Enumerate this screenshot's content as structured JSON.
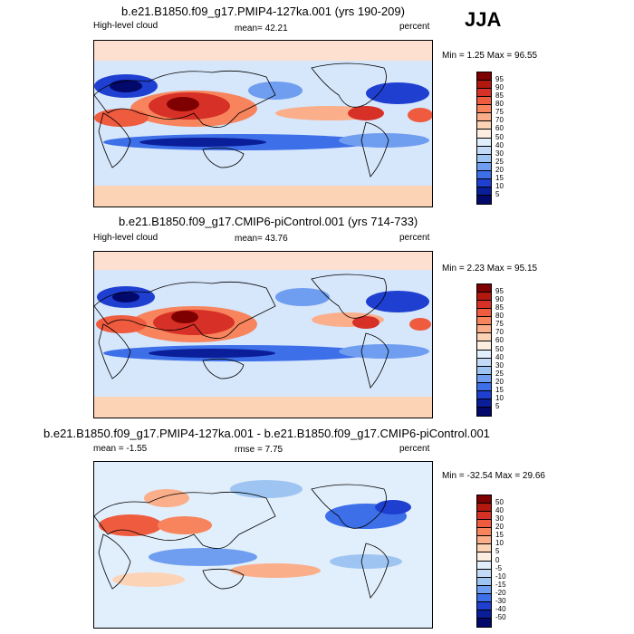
{
  "season": "JJA",
  "panels": [
    {
      "title": "b.e21.B1850.f09_g17.PMIP4-127ka.001 (yrs 190-209)",
      "left_label": "High-level cloud",
      "mean_text": "mean=  42.21",
      "units": "percent",
      "minmax": "Min =   1.25 Max =  96.55",
      "colorbar": {
        "labels": [
          "95",
          "90",
          "85",
          "80",
          "75",
          "70",
          "60",
          "50",
          "40",
          "30",
          "25",
          "20",
          "15",
          "10",
          "5"
        ],
        "colors": [
          "#7f0000",
          "#b2180e",
          "#d73027",
          "#ef5b3f",
          "#f7845c",
          "#fbae8a",
          "#fdd3b6",
          "#fdeee2",
          "#e1eefb",
          "#c3dbf7",
          "#9ec5f2",
          "#6f9df0",
          "#3c6fe8",
          "#1f3fd1",
          "#0b1e9a",
          "#03086b"
        ]
      }
    },
    {
      "title": "b.e21.B1850.f09_g17.CMIP6-piControl.001 (yrs 714-733)",
      "left_label": "High-level cloud",
      "mean_text": "mean=  43.76",
      "units": "percent",
      "minmax": "Min =   2.23 Max =  95.15",
      "colorbar": {
        "labels": [
          "95",
          "90",
          "85",
          "80",
          "75",
          "70",
          "60",
          "50",
          "40",
          "30",
          "25",
          "20",
          "15",
          "10",
          "5"
        ],
        "colors": [
          "#7f0000",
          "#b2180e",
          "#d73027",
          "#ef5b3f",
          "#f7845c",
          "#fbae8a",
          "#fdd3b6",
          "#fdeee2",
          "#e1eefb",
          "#c3dbf7",
          "#9ec5f2",
          "#6f9df0",
          "#3c6fe8",
          "#1f3fd1",
          "#0b1e9a",
          "#03086b"
        ]
      }
    },
    {
      "title": "b.e21.B1850.f09_g17.PMIP4-127ka.001 - b.e21.B1850.f09_g17.CMIP6-piControl.001",
      "left_label": "mean =  -1.55",
      "mean_text": "rmse =   7.75",
      "units": "percent",
      "minmax": "Min = -32.54 Max =  29.66",
      "colorbar": {
        "labels": [
          "50",
          "40",
          "30",
          "20",
          "15",
          "10",
          "5",
          "0",
          "-5",
          "-10",
          "-15",
          "-20",
          "-30",
          "-40",
          "-50"
        ],
        "colors": [
          "#7f0000",
          "#b2180e",
          "#d73027",
          "#ef5b3f",
          "#f7845c",
          "#fbae8a",
          "#fdd3b6",
          "#fdeee2",
          "#e1eefb",
          "#c3dbf7",
          "#9ec5f2",
          "#6f9df0",
          "#3c6fe8",
          "#1f3fd1",
          "#0b1e9a",
          "#03086b"
        ]
      }
    }
  ]
}
